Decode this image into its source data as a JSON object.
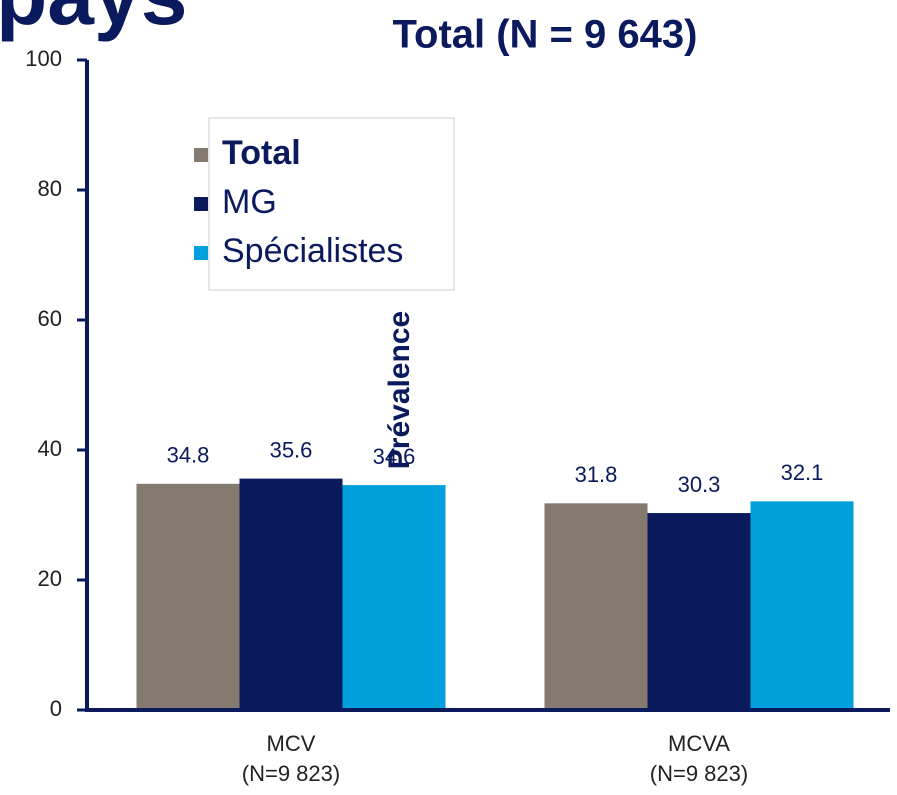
{
  "chart_data": {
    "type": "bar",
    "heading": "pays",
    "title": "Total (N = 9 643)",
    "ylabel": "Prévalence",
    "categories": [
      "MCV",
      "MCVA"
    ],
    "category_subtitles": [
      "(N=9 823)",
      "(N=9 823)"
    ],
    "series": [
      {
        "name": "Total",
        "color": "#857a70",
        "values": [
          34.8,
          31.8
        ]
      },
      {
        "name": "MG",
        "color": "#0a1a5c",
        "values": [
          35.6,
          30.3
        ]
      },
      {
        "name": "Spécialistes",
        "color": "#00a0dc",
        "values": [
          34.6,
          32.1
        ]
      }
    ],
    "ylim": [
      0,
      100
    ],
    "yticks": [
      0,
      20,
      40,
      60,
      80,
      100
    ],
    "grid": false,
    "legend": "upper left"
  }
}
